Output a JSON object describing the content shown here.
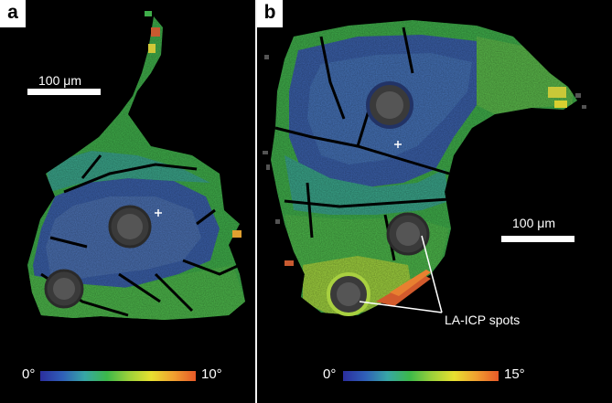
{
  "panels": {
    "a": {
      "label": "a",
      "scale_text": "100 μm",
      "colorbar": {
        "min_label": "0°",
        "max_label": "10°"
      }
    },
    "b": {
      "label": "b",
      "scale_text": "100 μm",
      "colorbar": {
        "min_label": "0°",
        "max_label": "15°"
      },
      "annotation": "LA-ICP spots"
    }
  },
  "colors": {
    "background": "#000000",
    "divider": "#f2f2f2",
    "colormap": [
      "#2b2e9e",
      "#2f5fb8",
      "#37a6a6",
      "#3cb84a",
      "#9cd13a",
      "#e8e030",
      "#f0a030",
      "#e85a28"
    ]
  }
}
